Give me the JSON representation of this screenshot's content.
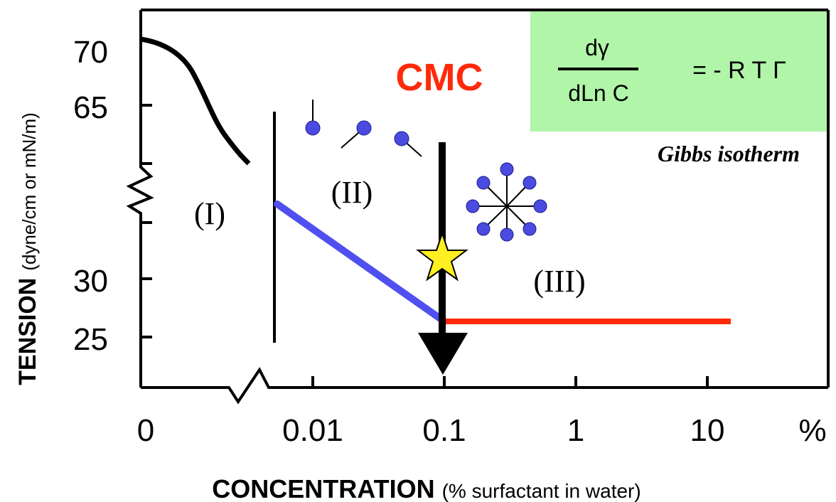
{
  "y_axis": {
    "title": "TENSION",
    "unit": "(dyne/cm or mN/m)",
    "ticks": [
      "70",
      "65",
      "30",
      "25"
    ]
  },
  "x_axis": {
    "title": "CONCENTRATION",
    "unit": "(% surfactant in water)",
    "ticks": [
      "0",
      "0.01",
      "0.1",
      "1",
      "10",
      "%"
    ]
  },
  "annotations": {
    "cmc": "CMC",
    "region_1": "(I)",
    "region_2": "(II)",
    "region_3": "(III)"
  },
  "formula": {
    "numerator": "dγ",
    "denominator": "dLn C",
    "right_side": "= - R T Γ",
    "caption": "Gibbs isotherm"
  }
}
